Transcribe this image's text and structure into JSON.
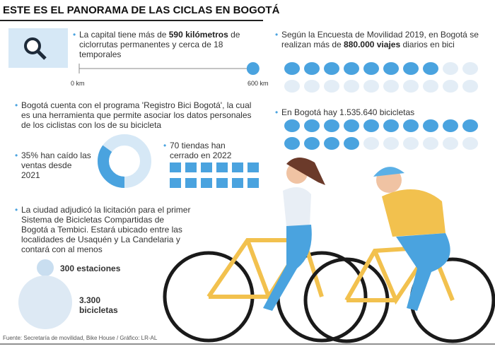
{
  "title": "ESTE ES EL PANORAMA DE LAS CICLAS EN BOGOTÁ",
  "ciclorrutas": {
    "text_before": "La capital tiene más de ",
    "value": 590,
    "bold": "590 kilómetros",
    "text_after": " de ciclorrutas permanentes y cerca de 18 temporales",
    "scale": [
      {
        "value": 0,
        "label": "0 km"
      },
      {
        "value": 600,
        "label": "600 km"
      }
    ]
  },
  "viajes": {
    "text_before": "Según la Encuesta de Movilidad 2019, en Bogotá se realizan más de ",
    "bold": "880.000 viajes",
    "text_after": " diarios en bici"
  },
  "bicicletas": {
    "text": "En Bogotá hay 1.535.640 bicicletas"
  },
  "registro": {
    "text": "Bogotá cuenta con el programa 'Registro Bici Bogotá', la cual es una herramienta que permite asociar los datos personales de los ciclistas con los de su bicicleta"
  },
  "ventas": {
    "value": 35,
    "text": "35% han caído las ventas desde 2021"
  },
  "tiendas": {
    "text": "70 tiendas han cerrado en 2022"
  },
  "tembici": {
    "text": "La ciudad adjudicó la licitación para el primer Sistema de Bicicletas Compartidas de Bogotá a Tembici. Estará ubicado entre las localidades de Usaquén y La Candelaria y contará con al menos",
    "items": [
      "300 estaciones",
      "3.300 bicicletas"
    ]
  },
  "source": "Fuente: Secretaría de movilidad, Bike House / Gráfico: LR-AL"
}
